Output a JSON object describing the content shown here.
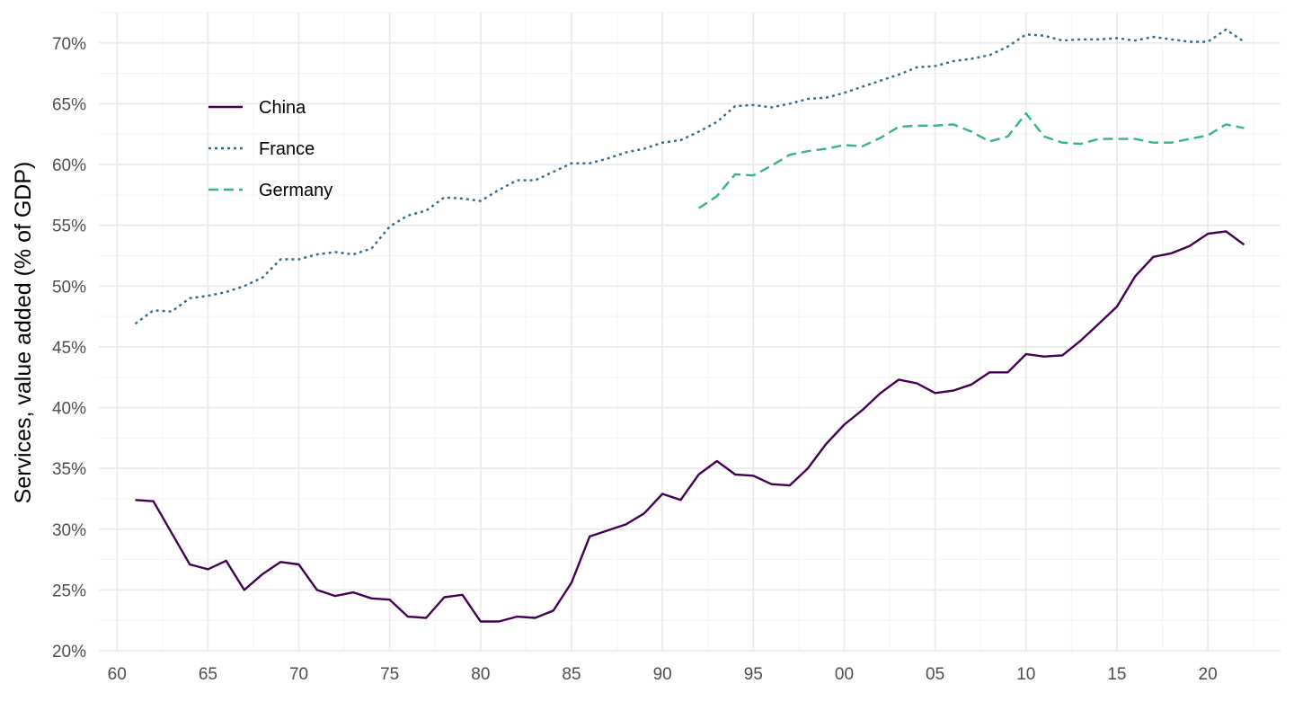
{
  "chart_data": {
    "type": "line",
    "ylabel": "Services, value added (% of GDP)",
    "xlabel": "",
    "title": "",
    "xlim": [
      1959,
      2024
    ],
    "ylim": [
      20,
      72.5
    ],
    "x_ticks": [
      1960,
      1965,
      1970,
      1975,
      1980,
      1985,
      1990,
      1995,
      2000,
      2005,
      2010,
      2015,
      2020
    ],
    "x_tick_labels": [
      "60",
      "65",
      "70",
      "75",
      "80",
      "85",
      "90",
      "95",
      "00",
      "05",
      "10",
      "15",
      "20"
    ],
    "y_ticks": [
      20,
      25,
      30,
      35,
      40,
      45,
      50,
      55,
      60,
      65,
      70
    ],
    "y_tick_labels": [
      "20%",
      "25%",
      "30%",
      "35%",
      "40%",
      "45%",
      "50%",
      "55%",
      "60%",
      "65%",
      "70%"
    ],
    "grid": true,
    "legend_position": "top-left",
    "series": [
      {
        "name": "China",
        "color": "#440154",
        "dash": "solid",
        "x": [
          1961,
          1962,
          1963,
          1964,
          1965,
          1966,
          1967,
          1968,
          1969,
          1970,
          1971,
          1972,
          1973,
          1974,
          1975,
          1976,
          1977,
          1978,
          1979,
          1980,
          1981,
          1982,
          1983,
          1984,
          1985,
          1986,
          1987,
          1988,
          1989,
          1990,
          1991,
          1992,
          1993,
          1994,
          1995,
          1996,
          1997,
          1998,
          1999,
          2000,
          2001,
          2002,
          2003,
          2004,
          2005,
          2006,
          2007,
          2008,
          2009,
          2010,
          2011,
          2012,
          2013,
          2014,
          2015,
          2016,
          2017,
          2018,
          2019,
          2020,
          2021,
          2022
        ],
        "values": [
          32.4,
          32.3,
          29.7,
          27.1,
          26.7,
          27.4,
          25.0,
          26.3,
          27.3,
          27.1,
          25.0,
          24.5,
          24.8,
          24.3,
          24.2,
          22.8,
          22.7,
          24.4,
          24.6,
          22.4,
          22.4,
          22.8,
          22.7,
          23.3,
          25.6,
          29.4,
          29.9,
          30.4,
          31.3,
          32.9,
          32.4,
          34.5,
          35.6,
          34.5,
          34.4,
          33.7,
          33.6,
          35.0,
          37.0,
          38.6,
          39.8,
          41.2,
          42.3,
          42.0,
          41.2,
          41.4,
          41.9,
          42.9,
          42.9,
          44.4,
          44.2,
          44.3,
          45.5,
          46.9,
          48.3,
          50.8,
          52.4,
          52.7,
          53.3,
          54.3,
          54.5,
          53.4
        ]
      },
      {
        "name": "France",
        "color": "#31688e",
        "dash": "dotted",
        "x": [
          1961,
          1962,
          1963,
          1964,
          1965,
          1966,
          1967,
          1968,
          1969,
          1970,
          1971,
          1972,
          1973,
          1974,
          1975,
          1976,
          1977,
          1978,
          1979,
          1980,
          1981,
          1982,
          1983,
          1984,
          1985,
          1986,
          1987,
          1988,
          1989,
          1990,
          1991,
          1992,
          1993,
          1994,
          1995,
          1996,
          1997,
          1998,
          1999,
          2000,
          2001,
          2002,
          2003,
          2004,
          2005,
          2006,
          2007,
          2008,
          2009,
          2010,
          2011,
          2012,
          2013,
          2014,
          2015,
          2016,
          2017,
          2018,
          2019,
          2020,
          2021,
          2022
        ],
        "values": [
          46.9,
          48.0,
          47.9,
          49.0,
          49.2,
          49.5,
          50.0,
          50.7,
          52.2,
          52.2,
          52.6,
          52.8,
          52.6,
          53.1,
          54.9,
          55.8,
          56.2,
          57.3,
          57.2,
          57.0,
          57.9,
          58.7,
          58.7,
          59.4,
          60.1,
          60.1,
          60.5,
          61.0,
          61.3,
          61.8,
          62.0,
          62.7,
          63.5,
          64.8,
          64.9,
          64.7,
          65.0,
          65.4,
          65.5,
          65.9,
          66.4,
          66.9,
          67.4,
          68.0,
          68.1,
          68.5,
          68.7,
          69.0,
          69.7,
          70.7,
          70.6,
          70.2,
          70.3,
          70.3,
          70.4,
          70.2,
          70.5,
          70.3,
          70.1,
          70.1,
          71.1,
          70.1
        ]
      },
      {
        "name": "Germany",
        "color": "#35b779",
        "dash": "dashed",
        "x": [
          1992,
          1993,
          1994,
          1995,
          1996,
          1997,
          1998,
          1999,
          2000,
          2001,
          2002,
          2003,
          2004,
          2005,
          2006,
          2007,
          2008,
          2009,
          2010,
          2011,
          2012,
          2013,
          2014,
          2015,
          2016,
          2017,
          2018,
          2019,
          2020,
          2021,
          2022
        ],
        "values": [
          56.4,
          57.4,
          59.2,
          59.1,
          59.9,
          60.8,
          61.1,
          61.3,
          61.6,
          61.5,
          62.2,
          63.1,
          63.2,
          63.2,
          63.3,
          62.7,
          61.9,
          62.3,
          64.2,
          62.3,
          61.8,
          61.7,
          62.1,
          62.1,
          62.1,
          61.8,
          61.8,
          62.1,
          62.4,
          63.3,
          63.0
        ]
      }
    ]
  }
}
